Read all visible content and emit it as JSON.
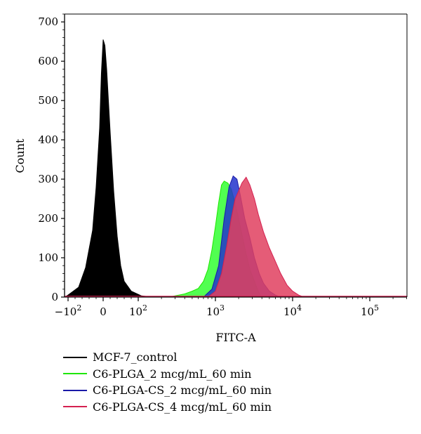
{
  "chart_data": {
    "type": "area",
    "xlabel": "FITC-A",
    "ylabel": "Count",
    "x_scale": "biexponential",
    "ylim": [
      0,
      720
    ],
    "grid": false,
    "legend_position": "bottom",
    "y_ticks": [
      "0",
      "100",
      "200",
      "300",
      "400",
      "500",
      "600",
      "700"
    ],
    "x_ticks": [
      {
        "base": "−10",
        "exp": "2",
        "value": -100
      },
      {
        "base": "0",
        "exp": "",
        "value": 0
      },
      {
        "base": "10",
        "exp": "2",
        "value": 100
      },
      {
        "base": "10",
        "exp": "3",
        "value": 1000
      },
      {
        "base": "10",
        "exp": "4",
        "value": 10000
      },
      {
        "base": "10",
        "exp": "5",
        "value": 100000
      }
    ],
    "series": [
      {
        "name": "MCF-7_control",
        "color": "#000000",
        "fill": "#000000",
        "points": [
          [
            -150,
            0
          ],
          [
            -100,
            5
          ],
          [
            -70,
            25
          ],
          [
            -50,
            75
          ],
          [
            -30,
            170
          ],
          [
            -20,
            280
          ],
          [
            -10,
            430
          ],
          [
            -5,
            570
          ],
          [
            0,
            655
          ],
          [
            5,
            640
          ],
          [
            10,
            580
          ],
          [
            20,
            420
          ],
          [
            30,
            270
          ],
          [
            40,
            155
          ],
          [
            50,
            80
          ],
          [
            60,
            40
          ],
          [
            80,
            15
          ],
          [
            110,
            3
          ],
          [
            150,
            0
          ]
        ]
      },
      {
        "name": "C6-PLGA_2 mcg/mL_60 min",
        "color": "#1ee600",
        "fill": "#33ff33",
        "points": [
          [
            250,
            0
          ],
          [
            300,
            3
          ],
          [
            400,
            8
          ],
          [
            500,
            15
          ],
          [
            600,
            22
          ],
          [
            700,
            40
          ],
          [
            800,
            70
          ],
          [
            900,
            120
          ],
          [
            1000,
            180
          ],
          [
            1100,
            240
          ],
          [
            1200,
            285
          ],
          [
            1300,
            295
          ],
          [
            1450,
            290
          ],
          [
            1600,
            275
          ],
          [
            1800,
            240
          ],
          [
            2000,
            200
          ],
          [
            2200,
            160
          ],
          [
            2500,
            110
          ],
          [
            2800,
            70
          ],
          [
            3200,
            40
          ],
          [
            3500,
            20
          ],
          [
            3800,
            5
          ],
          [
            4000,
            0
          ]
        ]
      },
      {
        "name": "C6-PLGA-CS_2 mcg/mL_60 min",
        "color": "#1a1aa8",
        "fill": "#2233cc",
        "points": [
          [
            700,
            0
          ],
          [
            900,
            20
          ],
          [
            1100,
            80
          ],
          [
            1300,
            200
          ],
          [
            1500,
            280
          ],
          [
            1700,
            308
          ],
          [
            1900,
            300
          ],
          [
            2100,
            260
          ],
          [
            2400,
            200
          ],
          [
            2800,
            150
          ],
          [
            3200,
            100
          ],
          [
            3700,
            60
          ],
          [
            4200,
            35
          ],
          [
            5000,
            15
          ],
          [
            6000,
            5
          ],
          [
            7000,
            0
          ]
        ]
      },
      {
        "name": "C6-PLGA-CS_4 mcg/mL_60 min",
        "color": "#d42050",
        "fill": "#e0405f",
        "points": [
          [
            800,
            0
          ],
          [
            1000,
            15
          ],
          [
            1200,
            60
          ],
          [
            1400,
            130
          ],
          [
            1600,
            200
          ],
          [
            1800,
            250
          ],
          [
            2000,
            270
          ],
          [
            2200,
            290
          ],
          [
            2500,
            305
          ],
          [
            2800,
            285
          ],
          [
            3200,
            250
          ],
          [
            3600,
            210
          ],
          [
            4200,
            165
          ],
          [
            5000,
            125
          ],
          [
            6000,
            90
          ],
          [
            7000,
            60
          ],
          [
            8500,
            30
          ],
          [
            10000,
            15
          ],
          [
            12000,
            5
          ],
          [
            14000,
            0
          ]
        ]
      }
    ]
  }
}
